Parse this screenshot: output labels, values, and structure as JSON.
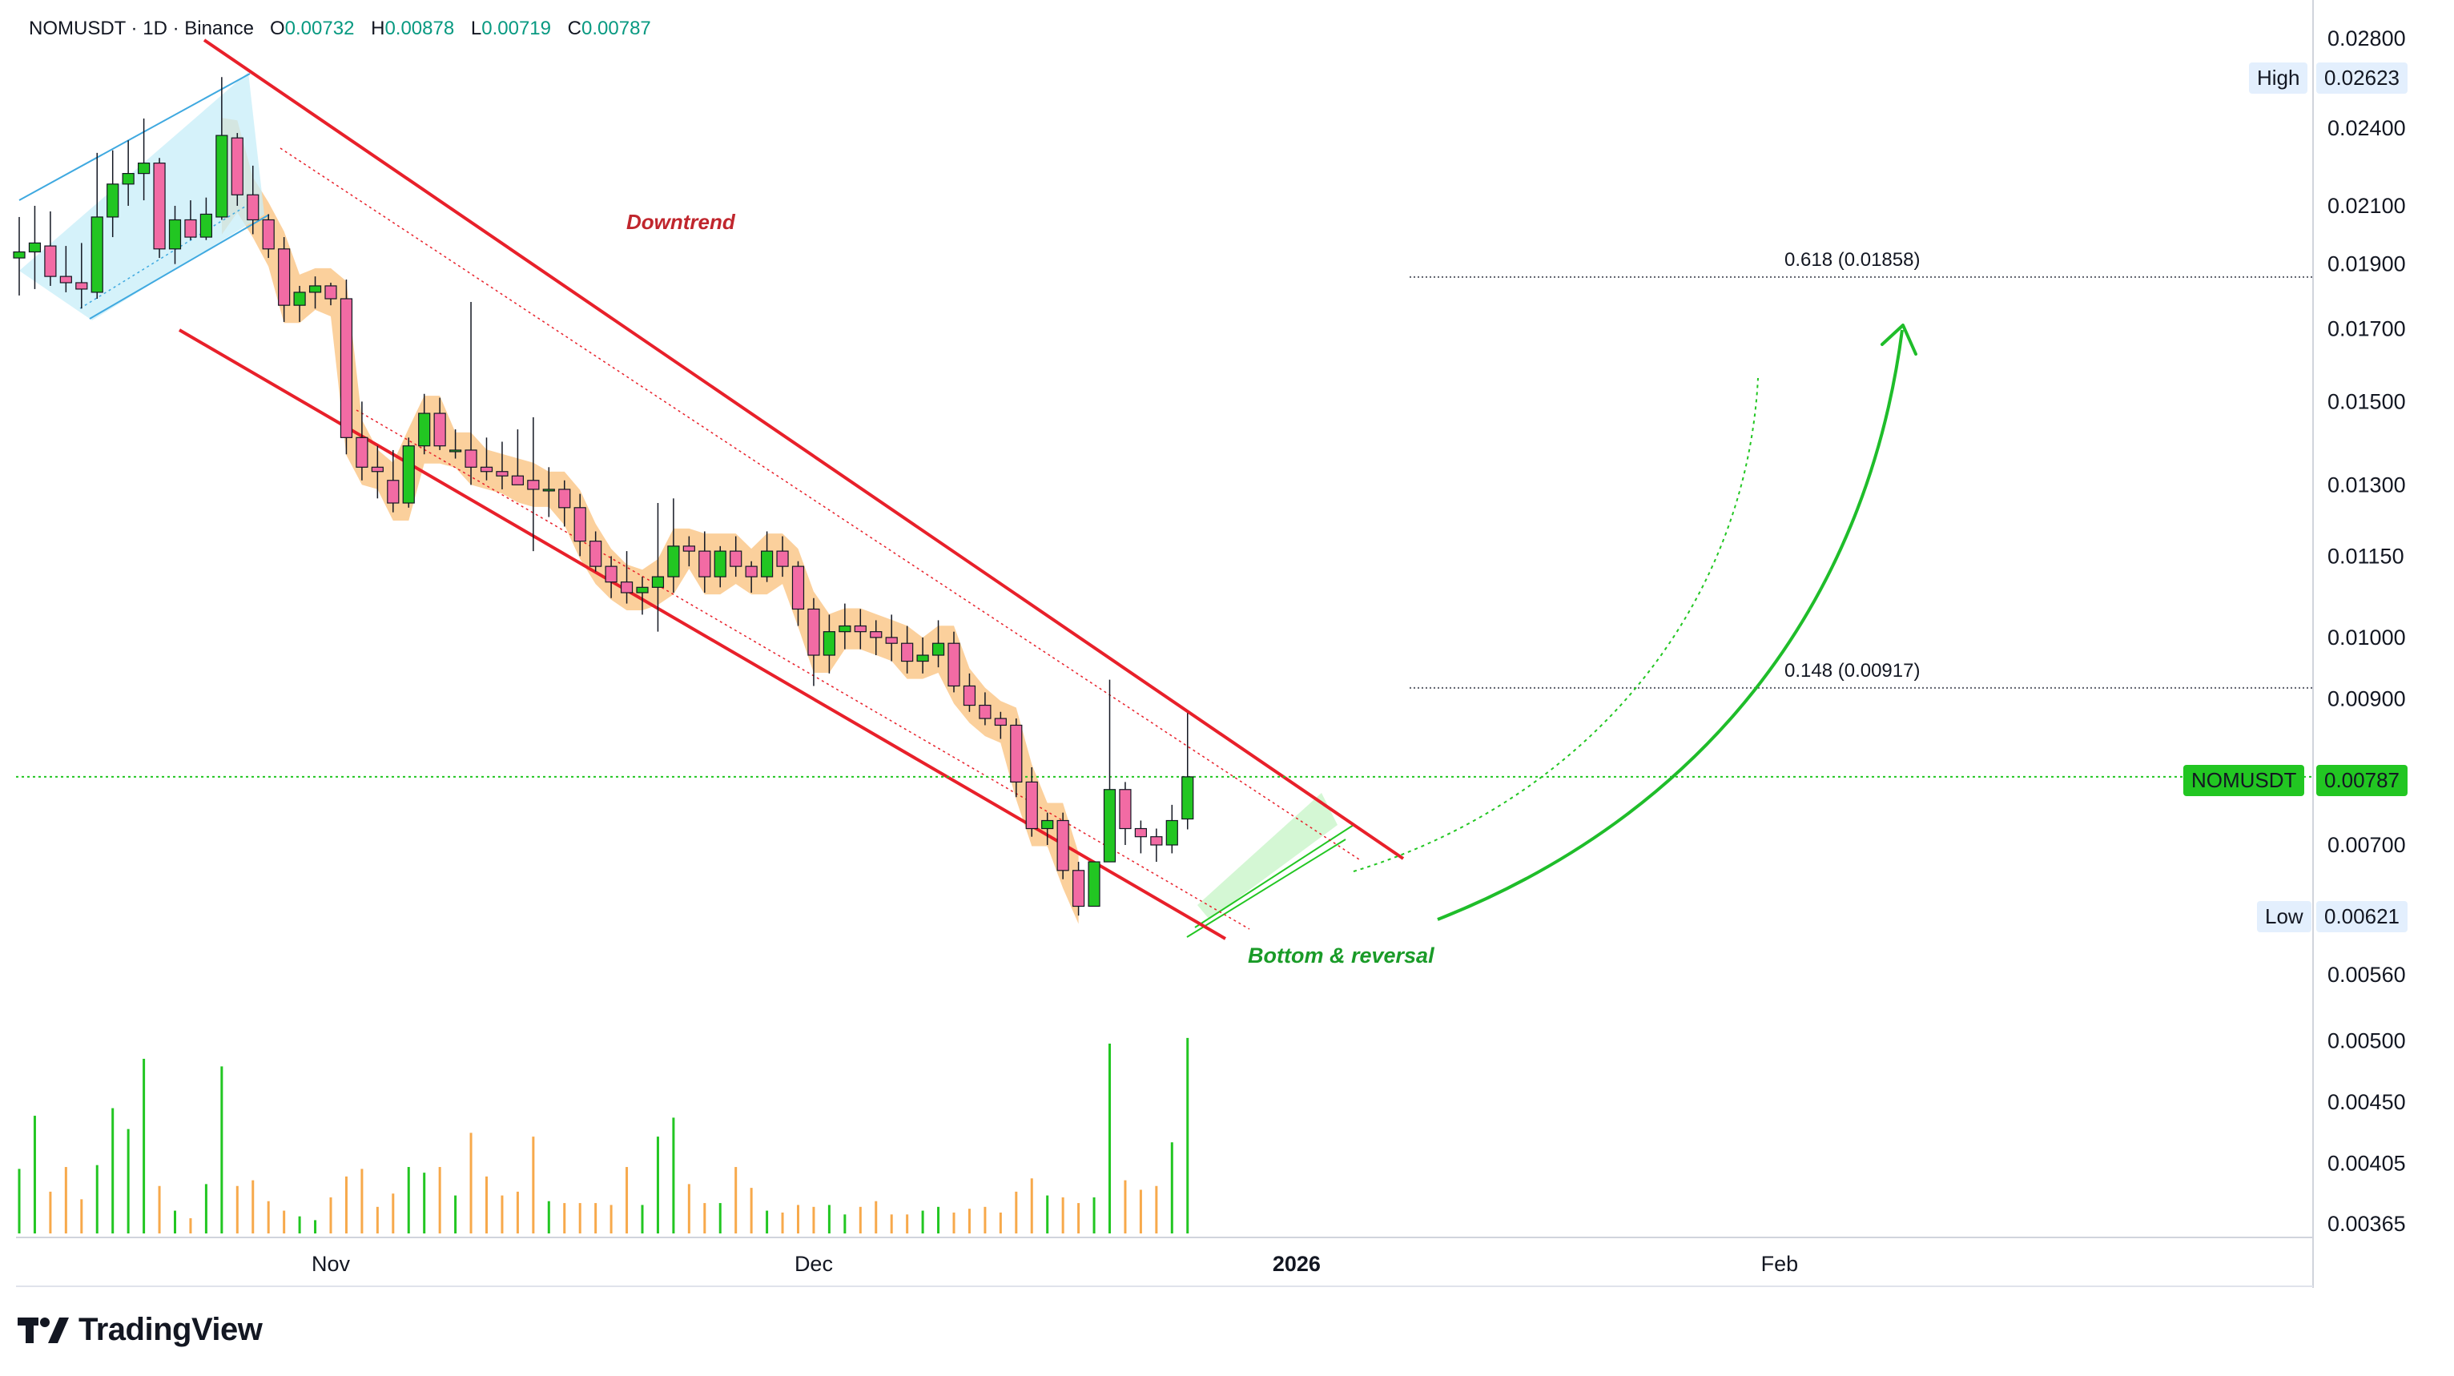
{
  "header": {
    "symbol": "NOMUSDT",
    "interval": "1D",
    "exchange": "Binance",
    "symbol_line": "NOMUSDT · 1D · Binance",
    "open_label": "O",
    "open": "0.00732",
    "high_label": "H",
    "high": "0.00878",
    "low_label": "L",
    "low": "0.00719",
    "close_label": "C",
    "close": "0.00787"
  },
  "brand": {
    "name": "TradingView"
  },
  "price_labels": {
    "high_label": "High",
    "high_value": "0.02623",
    "low_label": "Low",
    "low_value": "0.00621",
    "last_symbol": "NOMUSDT",
    "last_value": "0.00787"
  },
  "annotations": {
    "downtrend": "Downtrend",
    "reversal": "Bottom & reversal",
    "fib_618": "0.618 (0.01858)",
    "fib_148": "0.148 (0.00917)"
  },
  "colors": {
    "up": "#22c622",
    "down": "#f26ba4",
    "channel": "#e8202a",
    "zigzag": "#f7a94b",
    "vol_up": "#22c622",
    "vol_down": "#f7a94b",
    "annotation_red": "#c0262d",
    "annotation_green": "#1a9b28",
    "wedge": "#3fa9e0"
  },
  "chart_data": {
    "type": "candlestick",
    "symbol": "NOMUSDT",
    "scale": "log",
    "ylim": [
      0.00365,
      0.028
    ],
    "y_ticks": [
      "0.02800",
      "0.02400",
      "0.02100",
      "0.01900",
      "0.01700",
      "0.01500",
      "0.01300",
      "0.01150",
      "0.01000",
      "0.00900",
      "0.00700",
      "0.00560",
      "0.00500",
      "0.00450",
      "0.00405",
      "0.00365"
    ],
    "x_ticks": [
      {
        "label": "Nov",
        "index": 20
      },
      {
        "label": "Dec",
        "index": 51
      },
      {
        "label": "2026",
        "index": 82
      },
      {
        "label": "Feb",
        "index": 113
      }
    ],
    "candles": [
      {
        "o": 0.0192,
        "h": 0.0206,
        "l": 0.018,
        "c": 0.0194,
        "v": 0.34
      },
      {
        "o": 0.0194,
        "h": 0.021,
        "l": 0.0182,
        "c": 0.0197,
        "v": 0.62
      },
      {
        "o": 0.0196,
        "h": 0.0208,
        "l": 0.0183,
        "c": 0.0186,
        "v": 0.22
      },
      {
        "o": 0.0186,
        "h": 0.0196,
        "l": 0.0181,
        "c": 0.0184,
        "v": 0.35
      },
      {
        "o": 0.0184,
        "h": 0.0197,
        "l": 0.0176,
        "c": 0.0182,
        "v": 0.18
      },
      {
        "o": 0.0181,
        "h": 0.023,
        "l": 0.0179,
        "c": 0.0206,
        "v": 0.36
      },
      {
        "o": 0.0206,
        "h": 0.0231,
        "l": 0.0199,
        "c": 0.0218,
        "v": 0.66
      },
      {
        "o": 0.0218,
        "h": 0.0235,
        "l": 0.021,
        "c": 0.0222,
        "v": 0.55
      },
      {
        "o": 0.0222,
        "h": 0.0244,
        "l": 0.0212,
        "c": 0.0226,
        "v": 0.92
      },
      {
        "o": 0.0226,
        "h": 0.0228,
        "l": 0.0192,
        "c": 0.0195,
        "v": 0.25
      },
      {
        "o": 0.0195,
        "h": 0.021,
        "l": 0.019,
        "c": 0.0205,
        "v": 0.12
      },
      {
        "o": 0.0205,
        "h": 0.0212,
        "l": 0.0198,
        "c": 0.0199,
        "v": 0.08
      },
      {
        "o": 0.0199,
        "h": 0.0213,
        "l": 0.0198,
        "c": 0.0207,
        "v": 0.26
      },
      {
        "o": 0.0206,
        "h": 0.0262,
        "l": 0.0205,
        "c": 0.0237,
        "v": 0.88
      },
      {
        "o": 0.0236,
        "h": 0.0238,
        "l": 0.021,
        "c": 0.0214,
        "v": 0.25
      },
      {
        "o": 0.0214,
        "h": 0.0225,
        "l": 0.02,
        "c": 0.0205,
        "v": 0.28
      },
      {
        "o": 0.0205,
        "h": 0.0207,
        "l": 0.0192,
        "c": 0.0195,
        "v": 0.17
      },
      {
        "o": 0.0195,
        "h": 0.0199,
        "l": 0.0172,
        "c": 0.0177,
        "v": 0.12
      },
      {
        "o": 0.0177,
        "h": 0.0183,
        "l": 0.0172,
        "c": 0.0181,
        "v": 0.09
      },
      {
        "o": 0.0181,
        "h": 0.0186,
        "l": 0.0176,
        "c": 0.0183,
        "v": 0.07
      },
      {
        "o": 0.0183,
        "h": 0.0184,
        "l": 0.0177,
        "c": 0.0179,
        "v": 0.19
      },
      {
        "o": 0.0179,
        "h": 0.0185,
        "l": 0.0137,
        "c": 0.0141,
        "v": 0.3
      },
      {
        "o": 0.0141,
        "h": 0.015,
        "l": 0.0131,
        "c": 0.0134,
        "v": 0.34
      },
      {
        "o": 0.0134,
        "h": 0.0139,
        "l": 0.0127,
        "c": 0.0133,
        "v": 0.14
      },
      {
        "o": 0.0131,
        "h": 0.0138,
        "l": 0.0124,
        "c": 0.0126,
        "v": 0.21
      },
      {
        "o": 0.0126,
        "h": 0.0141,
        "l": 0.0125,
        "c": 0.0139,
        "v": 0.35
      },
      {
        "o": 0.0139,
        "h": 0.0152,
        "l": 0.0137,
        "c": 0.0147,
        "v": 0.32
      },
      {
        "o": 0.0147,
        "h": 0.0151,
        "l": 0.0138,
        "c": 0.0139,
        "v": 0.35
      },
      {
        "o": 0.0138,
        "h": 0.0143,
        "l": 0.0136,
        "c": 0.0138,
        "v": 0.2
      },
      {
        "o": 0.0138,
        "h": 0.0178,
        "l": 0.013,
        "c": 0.0134,
        "v": 0.53
      },
      {
        "o": 0.0134,
        "h": 0.0141,
        "l": 0.0131,
        "c": 0.0133,
        "v": 0.3
      },
      {
        "o": 0.0133,
        "h": 0.014,
        "l": 0.0129,
        "c": 0.0132,
        "v": 0.2
      },
      {
        "o": 0.0132,
        "h": 0.0143,
        "l": 0.013,
        "c": 0.013,
        "v": 0.22
      },
      {
        "o": 0.0131,
        "h": 0.0146,
        "l": 0.0116,
        "c": 0.0129,
        "v": 0.51
      },
      {
        "o": 0.0129,
        "h": 0.0134,
        "l": 0.0123,
        "c": 0.0129,
        "v": 0.17
      },
      {
        "o": 0.0129,
        "h": 0.0131,
        "l": 0.0121,
        "c": 0.0125,
        "v": 0.16
      },
      {
        "o": 0.0125,
        "h": 0.0128,
        "l": 0.0115,
        "c": 0.0118,
        "v": 0.16
      },
      {
        "o": 0.0118,
        "h": 0.012,
        "l": 0.0112,
        "c": 0.0113,
        "v": 0.16
      },
      {
        "o": 0.0113,
        "h": 0.0115,
        "l": 0.0107,
        "c": 0.011,
        "v": 0.15
      },
      {
        "o": 0.011,
        "h": 0.0116,
        "l": 0.0106,
        "c": 0.0108,
        "v": 0.35
      },
      {
        "o": 0.0108,
        "h": 0.0111,
        "l": 0.0104,
        "c": 0.0109,
        "v": 0.15
      },
      {
        "o": 0.0109,
        "h": 0.0126,
        "l": 0.0101,
        "c": 0.0111,
        "v": 0.51
      },
      {
        "o": 0.0111,
        "h": 0.0127,
        "l": 0.0108,
        "c": 0.0117,
        "v": 0.61
      },
      {
        "o": 0.0117,
        "h": 0.0119,
        "l": 0.0113,
        "c": 0.0116,
        "v": 0.26
      },
      {
        "o": 0.0116,
        "h": 0.012,
        "l": 0.0108,
        "c": 0.0111,
        "v": 0.16
      },
      {
        "o": 0.0111,
        "h": 0.0117,
        "l": 0.0109,
        "c": 0.0116,
        "v": 0.16
      },
      {
        "o": 0.0116,
        "h": 0.0119,
        "l": 0.0111,
        "c": 0.0113,
        "v": 0.35
      },
      {
        "o": 0.0113,
        "h": 0.0114,
        "l": 0.0108,
        "c": 0.0111,
        "v": 0.24
      },
      {
        "o": 0.0111,
        "h": 0.012,
        "l": 0.011,
        "c": 0.0116,
        "v": 0.12
      },
      {
        "o": 0.0116,
        "h": 0.0119,
        "l": 0.0111,
        "c": 0.0113,
        "v": 0.11
      },
      {
        "o": 0.0113,
        "h": 0.0114,
        "l": 0.0102,
        "c": 0.0105,
        "v": 0.15
      },
      {
        "o": 0.0105,
        "h": 0.0107,
        "l": 0.0092,
        "c": 0.0097,
        "v": 0.14
      },
      {
        "o": 0.0097,
        "h": 0.0104,
        "l": 0.0094,
        "c": 0.0101,
        "v": 0.15
      },
      {
        "o": 0.0101,
        "h": 0.0106,
        "l": 0.0098,
        "c": 0.0102,
        "v": 0.1
      },
      {
        "o": 0.0102,
        "h": 0.0105,
        "l": 0.0098,
        "c": 0.0101,
        "v": 0.14
      },
      {
        "o": 0.0101,
        "h": 0.0103,
        "l": 0.0097,
        "c": 0.01,
        "v": 0.17
      },
      {
        "o": 0.01,
        "h": 0.0104,
        "l": 0.0096,
        "c": 0.0099,
        "v": 0.1
      },
      {
        "o": 0.0099,
        "h": 0.0102,
        "l": 0.0094,
        "c": 0.0096,
        "v": 0.1
      },
      {
        "o": 0.0096,
        "h": 0.01,
        "l": 0.0094,
        "c": 0.0097,
        "v": 0.12
      },
      {
        "o": 0.0097,
        "h": 0.0103,
        "l": 0.0095,
        "c": 0.0099,
        "v": 0.14
      },
      {
        "o": 0.0099,
        "h": 0.0101,
        "l": 0.0091,
        "c": 0.0092,
        "v": 0.11
      },
      {
        "o": 0.0092,
        "h": 0.0094,
        "l": 0.0088,
        "c": 0.0089,
        "v": 0.13
      },
      {
        "o": 0.0089,
        "h": 0.0091,
        "l": 0.0086,
        "c": 0.0087,
        "v": 0.14
      },
      {
        "o": 0.0087,
        "h": 0.0088,
        "l": 0.0084,
        "c": 0.0086,
        "v": 0.11
      },
      {
        "o": 0.0086,
        "h": 0.0087,
        "l": 0.0076,
        "c": 0.0078,
        "v": 0.22
      },
      {
        "o": 0.0078,
        "h": 0.008,
        "l": 0.0071,
        "c": 0.0072,
        "v": 0.29
      },
      {
        "o": 0.0072,
        "h": 0.0074,
        "l": 0.007,
        "c": 0.0073,
        "v": 0.2
      },
      {
        "o": 0.0073,
        "h": 0.0074,
        "l": 0.0066,
        "c": 0.0067,
        "v": 0.19
      },
      {
        "o": 0.0067,
        "h": 0.0068,
        "l": 0.0062,
        "c": 0.0063,
        "v": 0.16
      },
      {
        "o": 0.0063,
        "h": 0.0068,
        "l": 0.0063,
        "c": 0.0068,
        "v": 0.19
      },
      {
        "o": 0.0068,
        "h": 0.0093,
        "l": 0.0068,
        "c": 0.0077,
        "v": 1.0
      },
      {
        "o": 0.0077,
        "h": 0.0078,
        "l": 0.007,
        "c": 0.0072,
        "v": 0.28
      },
      {
        "o": 0.0072,
        "h": 0.0073,
        "l": 0.0069,
        "c": 0.0071,
        "v": 0.23
      },
      {
        "o": 0.0071,
        "h": 0.0072,
        "l": 0.0068,
        "c": 0.007,
        "v": 0.25
      },
      {
        "o": 0.007,
        "h": 0.0075,
        "l": 0.0069,
        "c": 0.0073,
        "v": 0.48
      },
      {
        "o": 0.00732,
        "h": 0.00878,
        "l": 0.00719,
        "c": 0.00787,
        "v": 1.03
      }
    ],
    "levels": [
      {
        "label": "0.618 (0.01858)",
        "value": 0.01858
      },
      {
        "label": "0.148 (0.00917)",
        "value": 0.00917
      }
    ],
    "high": 0.02623,
    "low": 0.00621,
    "last": 0.00787,
    "grid": false
  }
}
